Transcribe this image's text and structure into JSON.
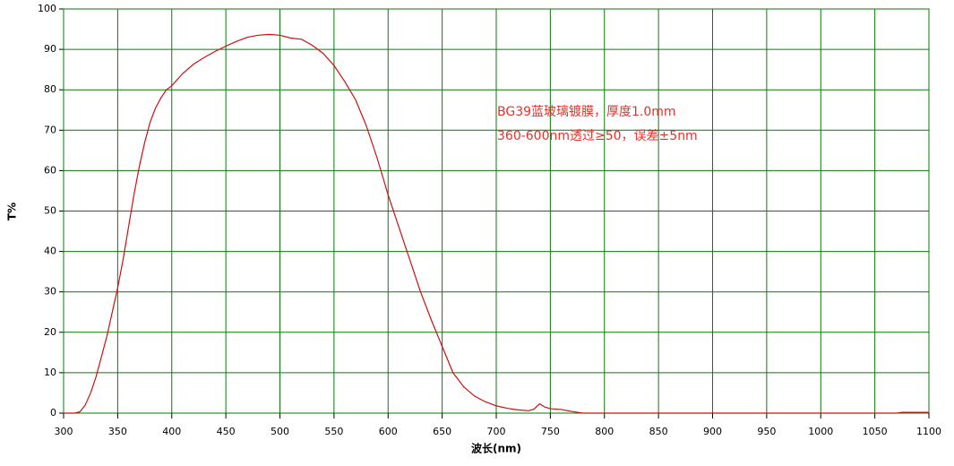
{
  "chart_data": {
    "type": "line",
    "x_label": "波长(nm)",
    "y_label": "T%",
    "annotations": [
      "BG39蓝玻璃镀膜，厚度1.0mm",
      "360-600nm透过≥50，误差±5nm"
    ],
    "xlim": [
      300,
      1100
    ],
    "ylim": [
      0,
      100
    ],
    "xticks": [
      300,
      350,
      400,
      450,
      500,
      550,
      600,
      650,
      700,
      750,
      800,
      850,
      900,
      950,
      1000,
      1050,
      1100
    ],
    "yticks": [
      0,
      10,
      20,
      30,
      40,
      50,
      60,
      70,
      80,
      90,
      100
    ],
    "grid": true,
    "grid_color": "#0a7a0a",
    "series": [
      {
        "color": "#cc1010",
        "x": [
          300,
          310,
          315,
          320,
          325,
          330,
          335,
          340,
          345,
          350,
          355,
          360,
          365,
          370,
          375,
          380,
          385,
          390,
          395,
          400,
          410,
          420,
          430,
          440,
          450,
          460,
          470,
          480,
          490,
          500,
          510,
          520,
          530,
          540,
          550,
          560,
          570,
          580,
          590,
          600,
          610,
          620,
          630,
          640,
          650,
          660,
          670,
          680,
          690,
          700,
          710,
          720,
          730,
          735,
          740,
          745,
          750,
          760,
          770,
          780,
          800,
          900,
          1000,
          1070,
          1075,
          1100
        ],
        "values": [
          0,
          0,
          0.3,
          2,
          5,
          9,
          14,
          19,
          25,
          31,
          38,
          46,
          54,
          61,
          67,
          72,
          75.5,
          78,
          80,
          81,
          84,
          86.3,
          88,
          89.5,
          90.8,
          92,
          93,
          93.5,
          93.7,
          93.5,
          92.8,
          92.5,
          91,
          89,
          86,
          82,
          77.5,
          71,
          63,
          54,
          46,
          38,
          30,
          23,
          16.5,
          10,
          6.5,
          4.2,
          2.8,
          1.8,
          1.2,
          0.8,
          0.6,
          1,
          2.3,
          1.5,
          1.1,
          0.9,
          0.4,
          0,
          0,
          0,
          0,
          0,
          0.2,
          0.2
        ]
      }
    ]
  }
}
